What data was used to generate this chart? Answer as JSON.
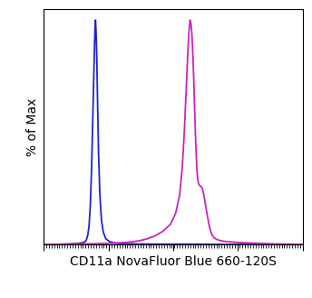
{
  "title": "",
  "xlabel": "CD11a NovaFluor Blue 660-120S",
  "ylabel": "% of Max",
  "xlim": [
    0,
    1
  ],
  "ylim": [
    0,
    1.05
  ],
  "background_color": "#ffffff",
  "blue_color": "#2222cc",
  "pink_color": "#cc22bb",
  "blue_curve": {
    "x": [
      0.0,
      0.05,
      0.1,
      0.13,
      0.15,
      0.16,
      0.165,
      0.17,
      0.175,
      0.18,
      0.185,
      0.19,
      0.195,
      0.198,
      0.2,
      0.202,
      0.205,
      0.208,
      0.212,
      0.217,
      0.223,
      0.23,
      0.24,
      0.255,
      0.275,
      0.3,
      0.35,
      0.42,
      0.55,
      0.7,
      0.85,
      1.0
    ],
    "y": [
      0.0,
      0.0,
      0.002,
      0.004,
      0.007,
      0.012,
      0.02,
      0.04,
      0.08,
      0.17,
      0.34,
      0.58,
      0.82,
      0.96,
      1.0,
      0.96,
      0.84,
      0.64,
      0.4,
      0.22,
      0.11,
      0.055,
      0.025,
      0.012,
      0.006,
      0.003,
      0.002,
      0.001,
      0.001,
      0.0,
      0.0,
      0.0
    ]
  },
  "pink_curve": {
    "x": [
      0.0,
      0.1,
      0.2,
      0.28,
      0.33,
      0.37,
      0.4,
      0.43,
      0.46,
      0.49,
      0.51,
      0.525,
      0.535,
      0.543,
      0.55,
      0.556,
      0.561,
      0.565,
      0.568,
      0.571,
      0.574,
      0.577,
      0.58,
      0.583,
      0.586,
      0.589,
      0.592,
      0.595,
      0.598,
      0.601,
      0.604,
      0.607,
      0.61,
      0.615,
      0.62,
      0.625,
      0.63,
      0.635,
      0.64,
      0.645,
      0.65,
      0.658,
      0.668,
      0.685,
      0.7,
      0.72,
      0.76,
      0.82,
      0.9,
      1.0
    ],
    "y": [
      0.0,
      0.001,
      0.003,
      0.006,
      0.01,
      0.016,
      0.025,
      0.038,
      0.058,
      0.09,
      0.14,
      0.22,
      0.34,
      0.5,
      0.68,
      0.84,
      0.95,
      1.0,
      0.99,
      0.96,
      0.9,
      0.82,
      0.72,
      0.6,
      0.49,
      0.4,
      0.33,
      0.29,
      0.27,
      0.265,
      0.26,
      0.258,
      0.255,
      0.24,
      0.21,
      0.175,
      0.14,
      0.11,
      0.08,
      0.058,
      0.042,
      0.03,
      0.022,
      0.016,
      0.013,
      0.011,
      0.008,
      0.005,
      0.002,
      0.0
    ]
  },
  "xlabel_fontsize": 10,
  "ylabel_fontsize": 10,
  "linewidth": 1.3,
  "minor_tick_count": 100,
  "major_tick_count": 5,
  "figsize": [
    3.44,
    3.28
  ],
  "dpi": 100
}
